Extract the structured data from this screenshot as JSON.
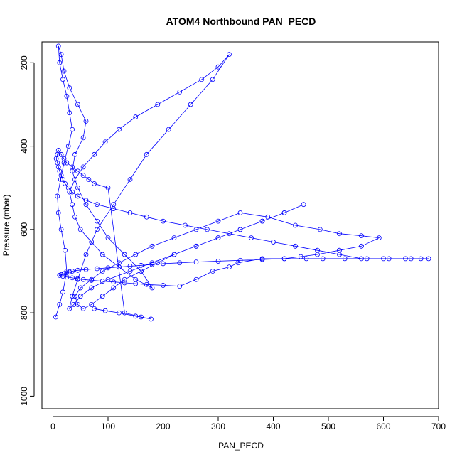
{
  "chart_data": {
    "type": "line",
    "title": "ATOM4 Northbound PAN_PECD",
    "xlabel": "PAN_PECD",
    "ylabel": "Pressure (mbar)",
    "xlim": [
      -20,
      700
    ],
    "ylim": [
      1030,
      150
    ],
    "y_reversed": true,
    "x_ticks": [
      0,
      100,
      200,
      300,
      400,
      500,
      600,
      700
    ],
    "y_ticks": [
      200,
      400,
      600,
      800,
      1000
    ],
    "grid": false,
    "legend": "none",
    "series_color": "#0000ff",
    "series": [
      {
        "x": [
          5,
          12,
          18,
          25,
          22,
          15,
          10,
          8,
          14,
          20,
          28,
          35,
          30,
          25,
          18,
          12,
          10,
          15,
          20,
          30,
          45,
          60,
          55,
          40,
          35,
          45,
          60,
          80,
          100,
          130,
          160,
          180,
          150,
          120,
          90,
          70,
          50,
          40,
          35,
          30,
          40,
          55,
          75,
          95,
          120,
          150,
          190,
          230,
          270,
          300,
          320,
          290,
          250,
          210,
          170,
          140,
          110,
          80,
          60,
          45,
          35,
          30,
          38,
          50,
          70,
          100,
          140,
          180,
          220,
          260,
          300,
          340,
          380,
          420,
          455,
          420,
          380,
          340,
          300,
          260,
          220,
          190,
          160,
          130,
          110,
          90,
          70,
          55,
          45,
          40,
          50,
          70,
          90,
          120,
          150,
          180,
          220,
          260,
          300,
          340,
          390,
          440,
          485,
          520,
          560,
          592,
          560,
          520,
          480,
          450,
          420,
          380,
          340,
          300,
          260,
          230,
          200,
          180,
          160,
          140,
          120,
          100,
          80,
          60,
          45,
          35,
          30,
          25,
          20,
          15,
          12,
          18,
          25,
          35,
          45,
          55,
          70,
          90,
          110,
          130,
          150,
          170,
          200,
          230,
          260,
          290,
          320,
          336,
          380,
          420,
          460,
          490,
          530,
          570,
          610,
          650,
          668,
          682,
          640,
          600,
          560,
          520,
          480,
          440,
          400,
          360,
          320,
          280,
          240,
          200,
          170,
          140,
          110,
          80,
          60,
          45,
          35,
          28,
          22,
          18,
          15,
          12,
          10,
          8,
          6,
          8,
          10,
          15,
          20,
          25,
          35,
          45,
          55,
          65,
          75,
          100,
          130,
          160,
          178,
          150,
          120,
          95,
          75
        ],
        "y": [
          810,
          780,
          750,
          700,
          650,
          600,
          560,
          520,
          480,
          440,
          400,
          360,
          320,
          280,
          240,
          200,
          160,
          180,
          220,
          260,
          300,
          340,
          380,
          420,
          460,
          500,
          540,
          580,
          620,
          660,
          700,
          740,
          720,
          690,
          660,
          630,
          600,
          570,
          540,
          510,
          480,
          450,
          420,
          390,
          360,
          330,
          300,
          270,
          240,
          210,
          180,
          240,
          300,
          360,
          420,
          480,
          540,
          600,
          660,
          720,
          760,
          790,
          780,
          760,
          740,
          720,
          700,
          680,
          660,
          640,
          620,
          600,
          580,
          560,
          540,
          560,
          580,
          600,
          620,
          640,
          660,
          680,
          700,
          720,
          740,
          760,
          780,
          790,
          780,
          760,
          740,
          720,
          700,
          680,
          660,
          640,
          620,
          600,
          580,
          560,
          570,
          590,
          600,
          610,
          615,
          620,
          640,
          650,
          660,
          665,
          670,
          672,
          674,
          676,
          678,
          680,
          682,
          684,
          686,
          688,
          690,
          692,
          694,
          696,
          698,
          700,
          702,
          704,
          706,
          708,
          710,
          712,
          714,
          716,
          718,
          720,
          722,
          724,
          726,
          728,
          730,
          732,
          734,
          736,
          720,
          700,
          690,
          680,
          670,
          670,
          670,
          670,
          670,
          670,
          670,
          670,
          670,
          670,
          670,
          670,
          670,
          660,
          650,
          640,
          630,
          620,
          610,
          600,
          590,
          580,
          570,
          560,
          550,
          540,
          530,
          520,
          510,
          500,
          490,
          480,
          470,
          460,
          450,
          440,
          430,
          420,
          410,
          420,
          430,
          440,
          450,
          460,
          470,
          480,
          490,
          500,
          800,
          810,
          815,
          808,
          800,
          795,
          790
        ]
      }
    ]
  }
}
